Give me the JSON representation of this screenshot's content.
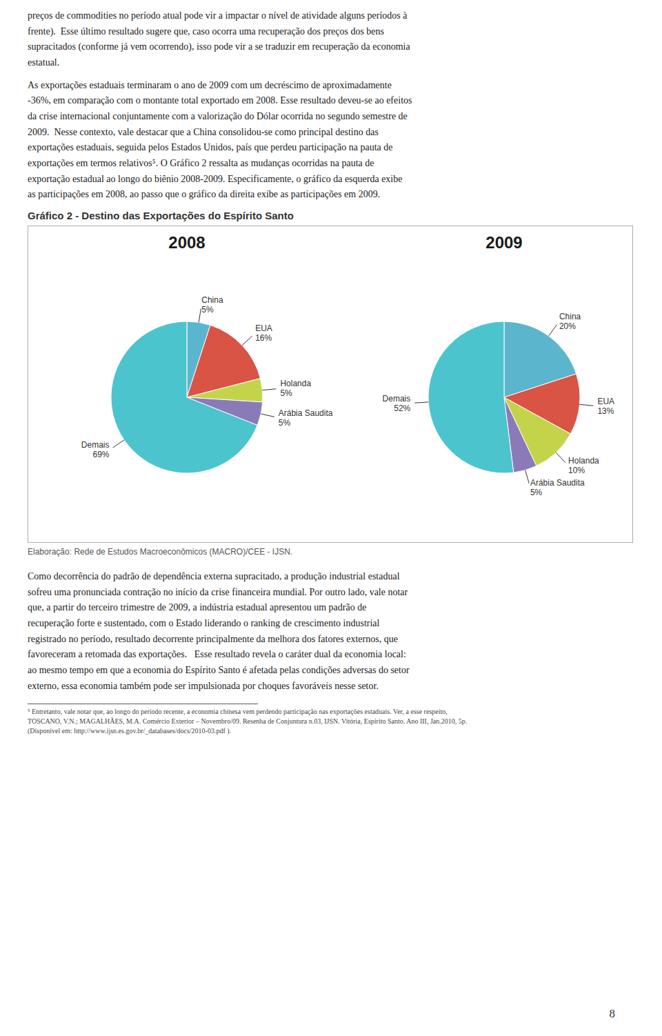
{
  "title": "Gráfico 2 - Destino das Exportações do Espírito Santo",
  "annotations": {
    "before": [
      "preços de commodities no período atual pode vir a impactar o nível de atividade alguns períodos à\nfrente).  Esse último resultado sugere que, caso ocorra uma recuperação dos preços dos bens\nsupracitados (conforme já vem ocorrendo), isso pode vir a se traduzir em recuperação da economia\nestatual.",
      "As exportações estaduais terminaram o ano de 2009 com um decréscimo de aproximadamente\n-36%, em comparação com o montante total exportado em 2008. Esse resultado deveu-se ao efeitos\nda crise internacional conjuntamente com a valorização do Dólar ocorrida no segundo semestre de\n2009.  Nesse contexto, vale destacar que a China consolidou-se como principal destino das\nexportações estaduais, seguida pelos Estados Unidos, país que perdeu participação na pauta de\nexportações em termos relativos⁵. O Gráfico 2 ressalta as mudanças ocorridas na pauta de\nexportação estadual ao longo do biênio 2008-2009. Especificamente, o gráfico da esquerda exibe\nas participações em 2008, ao passo que o gráfico da direita exibe as participações em 2009."
    ],
    "source": "Elaboração: Rede de Estudos Macroeconômicos (MACRO)/CEE - IJSN.",
    "after": [
      "Como decorrência do padrão de dependência externa supracitado, a produção industrial estadual\nsofreu uma pronunciada contração no início da crise financeira mundial. Por outro lado, vale notar\nque, a partir do terceiro trimestre de 2009, a indústria estadual apresentou um padrão de\nrecuperação forte e sustentado, com o Estado liderando o ranking de crescimento industrial\nregistrado no período, resultado decorrente principalmente da melhora dos fatores externos, que\nfavoreceram a retomada das exportações.   Esse resultado revela o caráter dual da economia local:\nao mesmo tempo em que a economia do Espírito Santo é afetada pelas condições adversas do setor\nexterno, essa economia também pode ser impulsionada por choques favoráveis nesse setor."
    ],
    "footnote": "⁵ Entretanto, vale notar que, ao longo do período recente, a economia chinesa vem perdendo participação nas exportações estaduais. Ver, a esse respeito,\nTOSCANO, V.N.; MAGALHÃES, M.A. Comércio Exterior – Novembro/09. Resenha de Conjuntura n.03, IJSN. Vitória, Espírito Santo. Ano III, Jan.2010, 5p.\n(Disponível em: http://www.ijsn.es.gov.br/_databases/docs/2010-03.pdf ).",
    "page": "8"
  },
  "chart_data": [
    {
      "type": "pie",
      "title": "2008",
      "categories": [
        "China",
        "EUA",
        "Holanda",
        "Arábia Saudita",
        "Demais"
      ],
      "values": [
        5,
        16,
        5,
        5,
        69
      ],
      "value_labels": [
        "5%",
        "16%",
        "5%",
        "5%",
        "69%"
      ],
      "colors": [
        "#5BB5CC",
        "#D95444",
        "#C4D44A",
        "#8B7AB8",
        "#4CC4CE"
      ],
      "data_labels": true
    },
    {
      "type": "pie",
      "title": "2009",
      "categories": [
        "China",
        "EUA",
        "Holanda",
        "Arábia Saudita",
        "Demais"
      ],
      "values": [
        20,
        13,
        10,
        5,
        52
      ],
      "value_labels": [
        "20%",
        "13%",
        "10%",
        "5%",
        "52%"
      ],
      "colors": [
        "#5BB5CC",
        "#D95444",
        "#C4D44A",
        "#8B7AB8",
        "#4CC4CE"
      ],
      "data_labels": true
    }
  ]
}
